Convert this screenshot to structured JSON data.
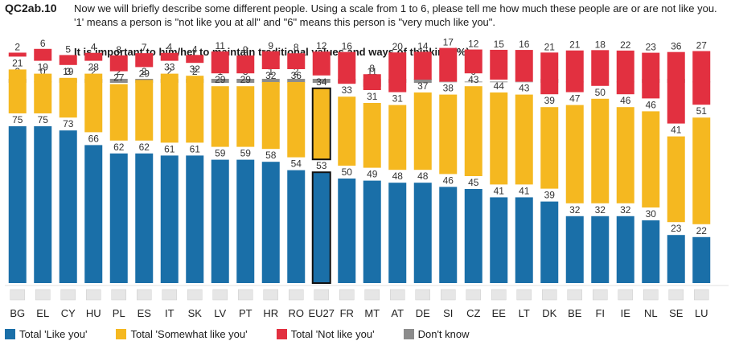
{
  "header": {
    "question_id": "QC2ab.10",
    "question_text": "Now we will briefly describe some different people. Using a scale from 1 to 6, please tell me how much these people are or are not like you. '1' means a person is \"not like you at all\" and \"6\" means this person is \"very much like you\".",
    "subtitle": "It is important to him/her to maintain traditional values and ways of thinking  (%)"
  },
  "colors": {
    "like": "#1a6fa8",
    "somewhat": "#f5b820",
    "not_like": "#e23040",
    "dont_know": "#8c8c8c"
  },
  "legend": [
    {
      "label": "Total 'Like you'",
      "color_key": "like"
    },
    {
      "label": "Total 'Somewhat like you'",
      "color_key": "somewhat"
    },
    {
      "label": "Total 'Not like you'",
      "color_key": "not_like"
    },
    {
      "label": "Don't know",
      "color_key": "dont_know"
    }
  ],
  "chart_data": {
    "type": "bar",
    "stacked": true,
    "title": "It is important to him/her to maintain traditional values and ways of thinking  (%)",
    "categories": [
      "BG",
      "EL",
      "CY",
      "HU",
      "PL",
      "ES",
      "IT",
      "SK",
      "LV",
      "PT",
      "HR",
      "RO",
      "EU27",
      "FR",
      "MT",
      "AT",
      "DE",
      "SI",
      "CZ",
      "EE",
      "LT",
      "DK",
      "BE",
      "FI",
      "IE",
      "NL",
      "SE",
      "LU"
    ],
    "highlight": "EU27",
    "series": [
      {
        "name": "Total 'Like you'",
        "values": [
          75,
          75,
          73,
          66,
          62,
          62,
          61,
          61,
          59,
          59,
          58,
          54,
          53,
          50,
          49,
          48,
          48,
          46,
          45,
          41,
          41,
          39,
          32,
          32,
          32,
          30,
          23,
          22
        ]
      },
      {
        "name": "Total 'Somewhat like you'",
        "values": [
          21,
          19,
          19,
          28,
          27,
          29,
          33,
          32,
          29,
          29,
          32,
          36,
          34,
          33,
          31,
          31,
          37,
          38,
          43,
          44,
          43,
          39,
          47,
          50,
          46,
          46,
          41,
          51
        ]
      },
      {
        "name": "Total 'Not like you'",
        "values": [
          2,
          6,
          5,
          4,
          8,
          7,
          4,
          4,
          11,
          9,
          9,
          8,
          12,
          16,
          8,
          20,
          14,
          17,
          12,
          15,
          16,
          21,
          21,
          18,
          22,
          23,
          36,
          27
        ]
      },
      {
        "name": "Don't know",
        "values": [
          2,
          0,
          3,
          2,
          2,
          2,
          2,
          2,
          1,
          3,
          1,
          2,
          2,
          1,
          11,
          1,
          2,
          0,
          0,
          0,
          0,
          1,
          0,
          0,
          0,
          1,
          1,
          0
        ]
      }
    ],
    "ylim": [
      0,
      100
    ]
  }
}
